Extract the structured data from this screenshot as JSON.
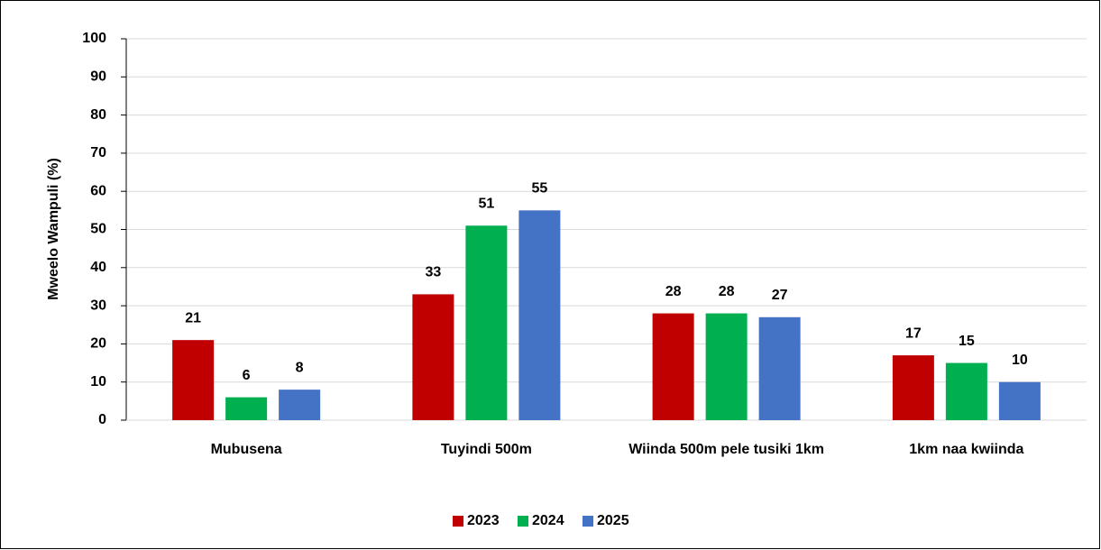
{
  "chart_data": {
    "type": "bar",
    "ylabel": "Mweelo Wampuli (%)",
    "categories": [
      "Mubusena",
      "Tuyindi 500m",
      "Wiinda 500m pele tusiki 1km",
      "1km naa kwiinda"
    ],
    "series": [
      {
        "name": "2023",
        "color": "#c00000",
        "values": [
          21,
          33,
          28,
          17
        ]
      },
      {
        "name": "2024",
        "color": "#00b050",
        "values": [
          6,
          51,
          28,
          15
        ]
      },
      {
        "name": "2025",
        "color": "#4472c4",
        "values": [
          8,
          55,
          27,
          10
        ]
      }
    ],
    "ylim": [
      0,
      100
    ],
    "yticks": [
      0,
      10,
      20,
      30,
      40,
      50,
      60,
      70,
      80,
      90,
      100
    ],
    "grid": true,
    "legend": "bottom"
  }
}
